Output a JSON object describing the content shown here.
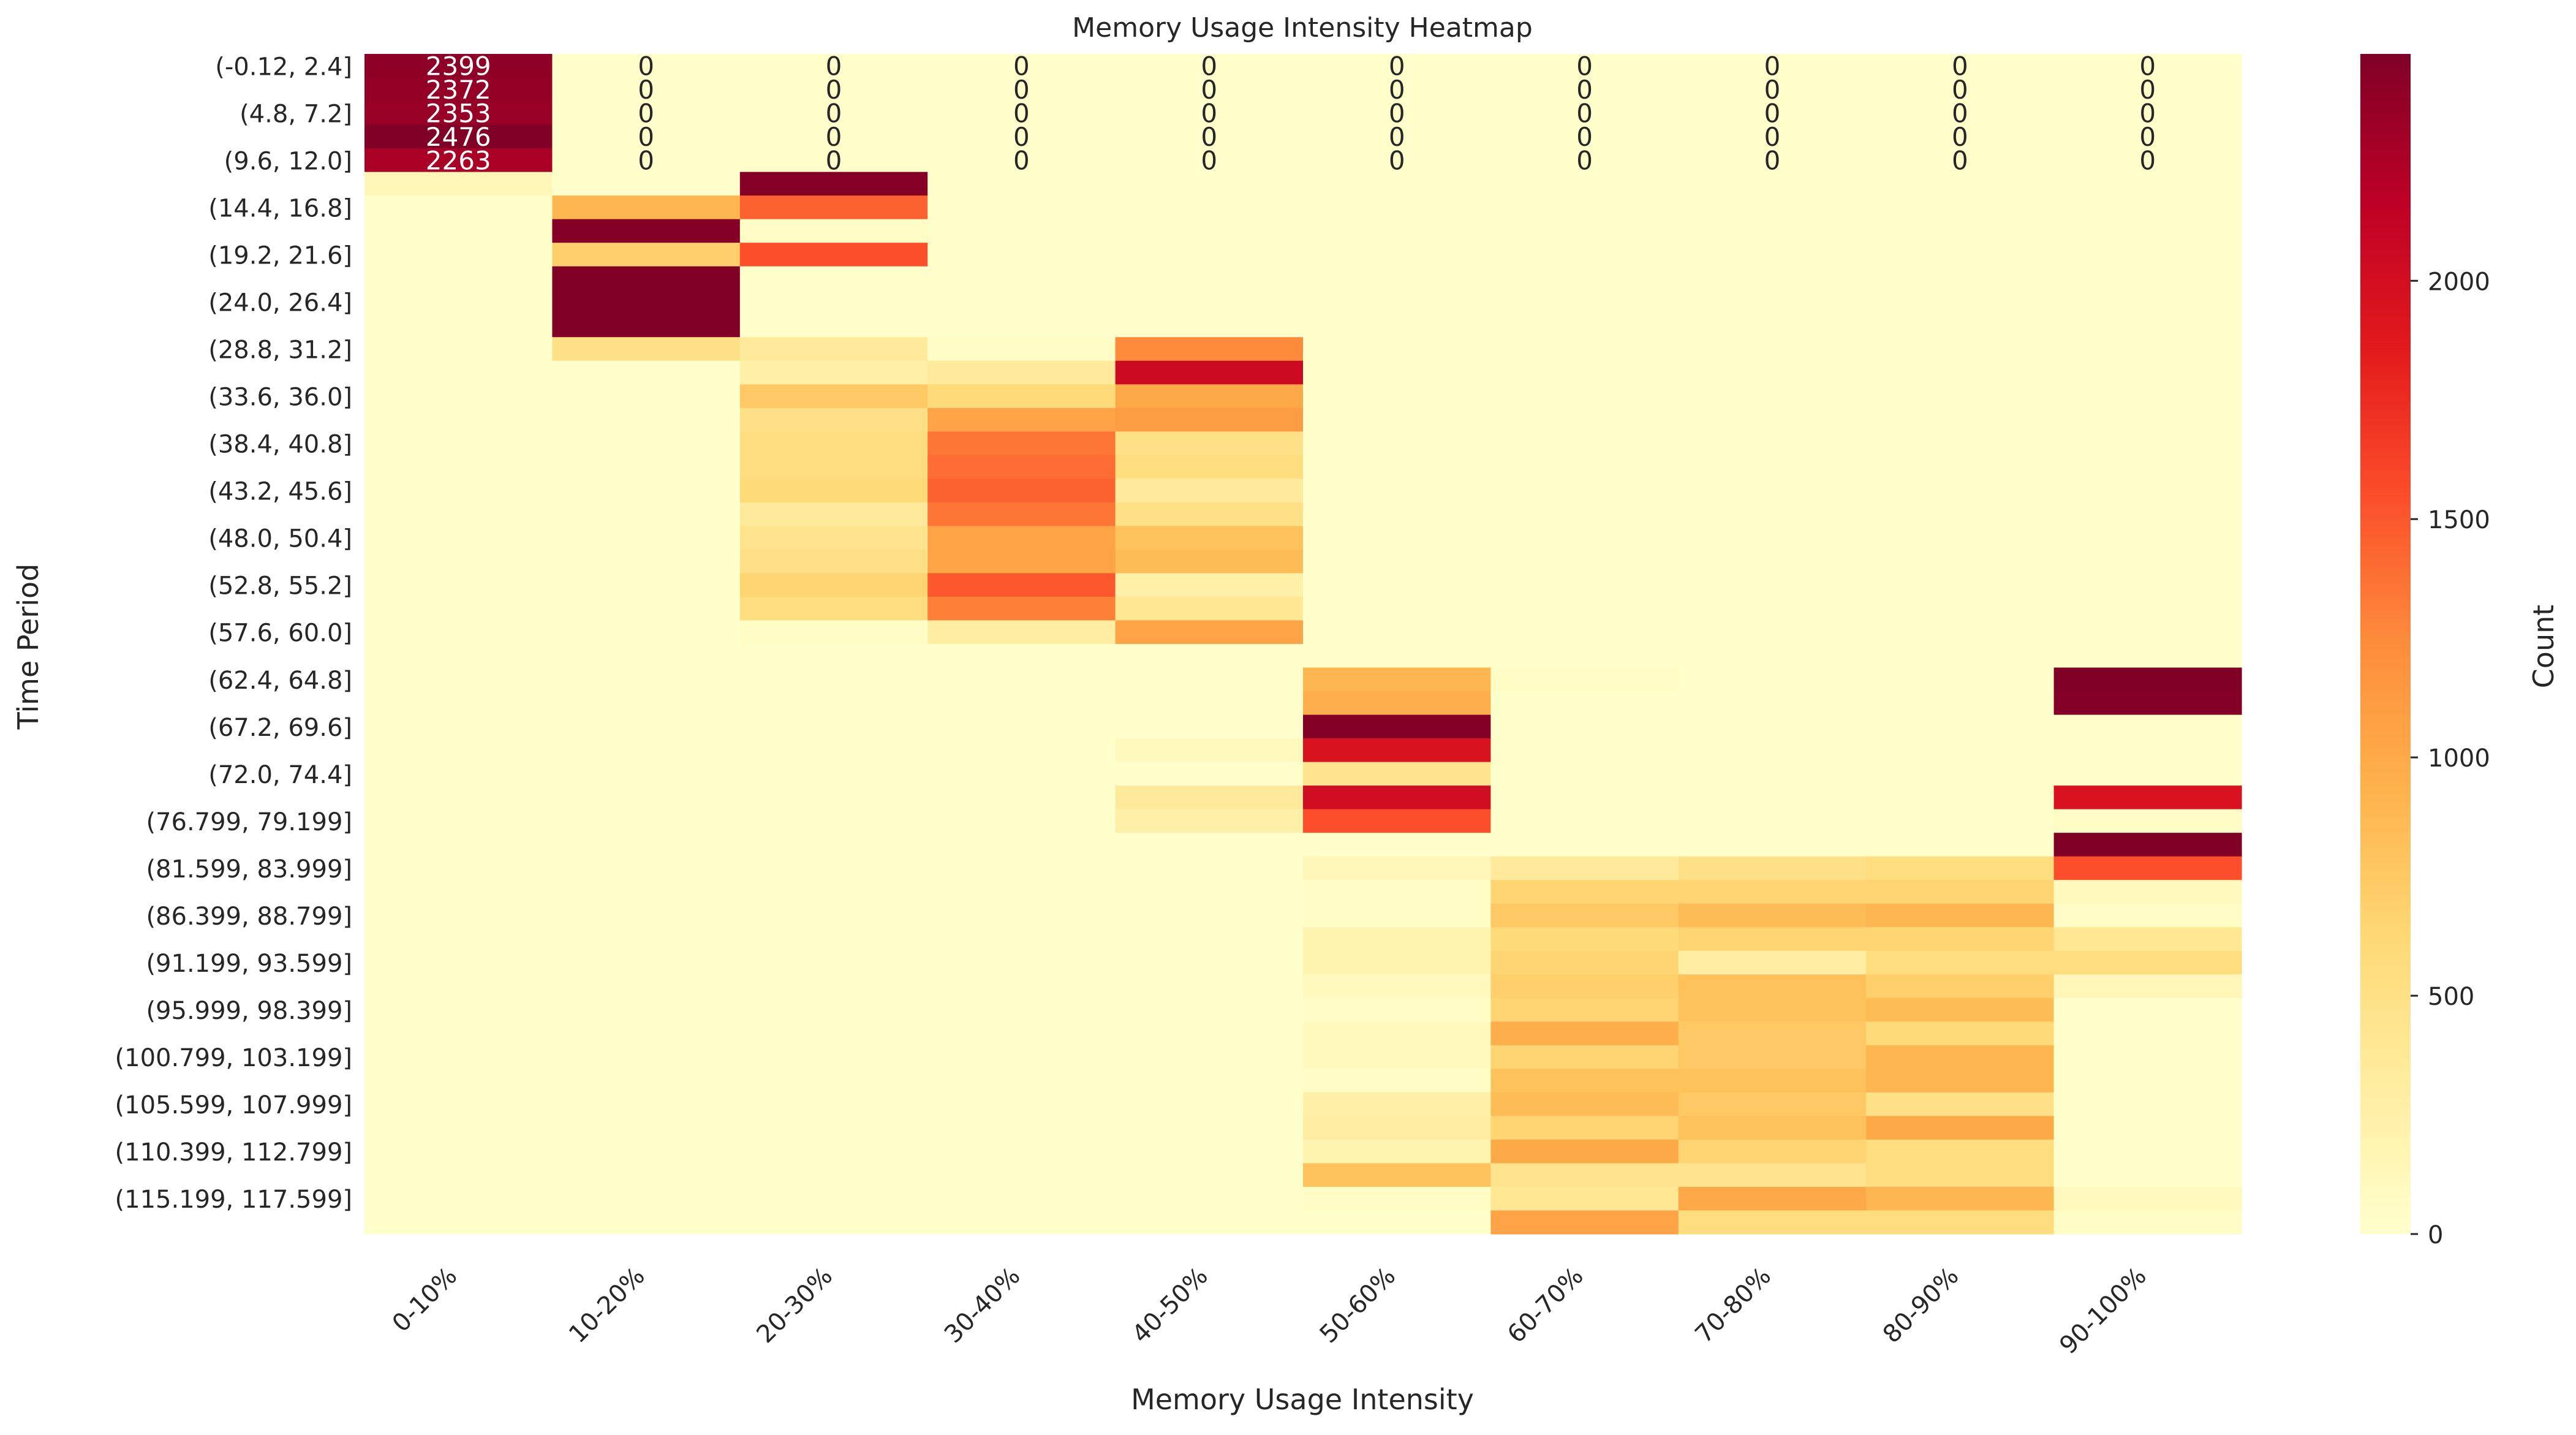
{
  "chart_data": {
    "type": "heatmap",
    "title": "Memory Usage Intensity Heatmap",
    "xlabel": "Memory Usage Intensity",
    "ylabel": "Time Period",
    "colorbar_label": "Count",
    "colorscale": "YlOrRd",
    "vmin": 0,
    "vmax": 2476,
    "colorbar_ticks": [
      0,
      500,
      1000,
      1500,
      2000
    ],
    "x_categories": [
      "0-10%",
      "10-20%",
      "20-30%",
      "30-40%",
      "40-50%",
      "50-60%",
      "60-70%",
      "70-80%",
      "80-90%",
      "90-100%"
    ],
    "row_count": 50,
    "y_tick_labels": [
      {
        "row": 0,
        "label": "(-0.12, 2.4]"
      },
      {
        "row": 2,
        "label": "(4.8, 7.2]"
      },
      {
        "row": 4,
        "label": "(9.6, 12.0]"
      },
      {
        "row": 6,
        "label": "(14.4, 16.8]"
      },
      {
        "row": 8,
        "label": "(19.2, 21.6]"
      },
      {
        "row": 10,
        "label": "(24.0, 26.4]"
      },
      {
        "row": 12,
        "label": "(28.8, 31.2]"
      },
      {
        "row": 14,
        "label": "(33.6, 36.0]"
      },
      {
        "row": 16,
        "label": "(38.4, 40.8]"
      },
      {
        "row": 18,
        "label": "(43.2, 45.6]"
      },
      {
        "row": 20,
        "label": "(48.0, 50.4]"
      },
      {
        "row": 22,
        "label": "(52.8, 55.2]"
      },
      {
        "row": 24,
        "label": "(57.6, 60.0]"
      },
      {
        "row": 26,
        "label": "(62.4, 64.8]"
      },
      {
        "row": 28,
        "label": "(67.2, 69.6]"
      },
      {
        "row": 30,
        "label": "(72.0, 74.4]"
      },
      {
        "row": 32,
        "label": "(76.799, 79.199]"
      },
      {
        "row": 34,
        "label": "(81.599, 83.999]"
      },
      {
        "row": 36,
        "label": "(86.399, 88.799]"
      },
      {
        "row": 38,
        "label": "(91.199, 93.599]"
      },
      {
        "row": 40,
        "label": "(95.999, 98.399]"
      },
      {
        "row": 42,
        "label": "(100.799, 103.199]"
      },
      {
        "row": 44,
        "label": "(105.599, 107.999]"
      },
      {
        "row": 46,
        "label": "(110.399, 112.799]"
      },
      {
        "row": 48,
        "label": "(115.199, 117.599]"
      }
    ],
    "annotated_rows": 5,
    "values": [
      [
        2399,
        0,
        0,
        0,
        0,
        0,
        0,
        0,
        0,
        0
      ],
      [
        2372,
        0,
        0,
        0,
        0,
        0,
        0,
        0,
        0,
        0
      ],
      [
        2353,
        0,
        0,
        0,
        0,
        0,
        0,
        0,
        0,
        0
      ],
      [
        2476,
        0,
        0,
        0,
        0,
        0,
        0,
        0,
        0,
        0
      ],
      [
        2263,
        0,
        0,
        0,
        0,
        0,
        0,
        0,
        0,
        0
      ],
      [
        150,
        0,
        2450,
        0,
        0,
        0,
        0,
        0,
        0,
        0
      ],
      [
        0,
        900,
        1450,
        0,
        0,
        0,
        0,
        0,
        0,
        0
      ],
      [
        0,
        2450,
        50,
        0,
        0,
        0,
        0,
        0,
        0,
        0
      ],
      [
        0,
        700,
        1550,
        0,
        0,
        0,
        0,
        0,
        0,
        0
      ],
      [
        0,
        2476,
        0,
        0,
        0,
        0,
        0,
        0,
        0,
        0
      ],
      [
        0,
        2476,
        0,
        0,
        0,
        0,
        0,
        0,
        0,
        0
      ],
      [
        0,
        2476,
        0,
        0,
        0,
        0,
        0,
        0,
        0,
        0
      ],
      [
        0,
        500,
        350,
        50,
        1250,
        0,
        0,
        0,
        0,
        0
      ],
      [
        0,
        0,
        250,
        350,
        2050,
        0,
        0,
        0,
        0,
        0
      ],
      [
        0,
        0,
        750,
        600,
        1000,
        0,
        0,
        0,
        0,
        0
      ],
      [
        0,
        0,
        500,
        1050,
        1100,
        0,
        0,
        0,
        0,
        0
      ],
      [
        0,
        0,
        550,
        1350,
        500,
        0,
        0,
        0,
        0,
        0
      ],
      [
        0,
        0,
        550,
        1400,
        550,
        0,
        0,
        0,
        0,
        0
      ],
      [
        0,
        0,
        600,
        1450,
        350,
        0,
        0,
        0,
        0,
        0
      ],
      [
        0,
        0,
        350,
        1350,
        500,
        0,
        0,
        0,
        0,
        0
      ],
      [
        0,
        0,
        450,
        1050,
        800,
        0,
        0,
        0,
        0,
        0
      ],
      [
        0,
        0,
        500,
        1050,
        850,
        0,
        0,
        0,
        0,
        0
      ],
      [
        0,
        0,
        650,
        1500,
        250,
        0,
        0,
        0,
        0,
        0
      ],
      [
        0,
        0,
        550,
        1300,
        400,
        0,
        0,
        0,
        0,
        0
      ],
      [
        0,
        0,
        50,
        300,
        1050,
        0,
        0,
        0,
        0,
        0
      ],
      [
        0,
        0,
        0,
        0,
        0,
        0,
        0,
        0,
        0,
        0
      ],
      [
        0,
        0,
        0,
        0,
        0,
        900,
        50,
        0,
        0,
        2476
      ],
      [
        0,
        0,
        0,
        0,
        0,
        950,
        0,
        0,
        0,
        2450
      ],
      [
        0,
        0,
        0,
        0,
        0,
        2450,
        0,
        0,
        0,
        0
      ],
      [
        0,
        0,
        0,
        0,
        100,
        1950,
        0,
        0,
        0,
        0
      ],
      [
        0,
        0,
        0,
        0,
        0,
        450,
        0,
        0,
        0,
        0
      ],
      [
        0,
        0,
        0,
        0,
        350,
        2000,
        0,
        0,
        0,
        1950
      ],
      [
        0,
        0,
        0,
        0,
        250,
        1550,
        0,
        0,
        0,
        50
      ],
      [
        0,
        0,
        0,
        0,
        0,
        0,
        0,
        0,
        0,
        2476
      ],
      [
        0,
        0,
        0,
        0,
        0,
        150,
        350,
        500,
        550,
        1550
      ],
      [
        0,
        0,
        0,
        0,
        0,
        50,
        650,
        650,
        650,
        100
      ],
      [
        0,
        0,
        0,
        0,
        0,
        50,
        750,
        850,
        900,
        50
      ],
      [
        0,
        0,
        0,
        0,
        0,
        200,
        600,
        650,
        650,
        400
      ],
      [
        0,
        0,
        0,
        0,
        0,
        200,
        650,
        300,
        550,
        550
      ],
      [
        0,
        0,
        0,
        0,
        0,
        100,
        700,
        800,
        700,
        150
      ],
      [
        0,
        0,
        0,
        0,
        0,
        50,
        650,
        800,
        850,
        0
      ],
      [
        0,
        0,
        0,
        0,
        0,
        100,
        950,
        750,
        600,
        0
      ],
      [
        0,
        0,
        0,
        0,
        0,
        100,
        650,
        750,
        900,
        0
      ],
      [
        0,
        0,
        0,
        0,
        0,
        50,
        800,
        800,
        900,
        0
      ],
      [
        0,
        0,
        0,
        0,
        0,
        250,
        850,
        750,
        500,
        0
      ],
      [
        0,
        0,
        0,
        0,
        0,
        300,
        650,
        800,
        1000,
        0
      ],
      [
        0,
        0,
        0,
        0,
        0,
        200,
        1000,
        650,
        550,
        0
      ],
      [
        0,
        0,
        0,
        0,
        0,
        800,
        450,
        450,
        550,
        0
      ],
      [
        0,
        0,
        0,
        0,
        0,
        50,
        400,
        1000,
        900,
        100
      ],
      [
        0,
        0,
        0,
        0,
        0,
        0,
        1050,
        550,
        550,
        50
      ]
    ]
  }
}
